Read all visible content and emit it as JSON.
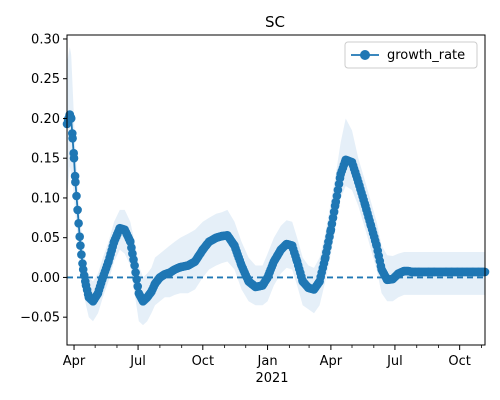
{
  "chart_data": {
    "type": "line",
    "title": "SC",
    "xlabel": "",
    "ylabel": "",
    "x_tick_labels": [
      "Apr",
      "Jul",
      "Oct",
      "Jan",
      "Apr",
      "Jul",
      "Oct"
    ],
    "x_year_label": "2021",
    "y_tick_labels": [
      "0.30",
      "0.25",
      "0.20",
      "0.15",
      "0.10",
      "0.05",
      "0.00",
      "−0.05"
    ],
    "ylim": [
      -0.085,
      0.305
    ],
    "xlim": [
      "2020-03-22",
      "2021-11-06"
    ],
    "legend": {
      "entries": [
        "growth_rate"
      ],
      "position": "top-right"
    },
    "reference_line": {
      "y": 0.0,
      "style": "dashed"
    },
    "colors": {
      "line": "#1f77b4",
      "band": "#c6dbef"
    },
    "series": [
      {
        "name": "growth_rate",
        "x": [
          "2020-03-22",
          "2020-03-24",
          "2020-03-26",
          "2020-03-28",
          "2020-03-30",
          "2020-04-01",
          "2020-04-03",
          "2020-04-06",
          "2020-04-10",
          "2020-04-14",
          "2020-04-18",
          "2020-04-22",
          "2020-04-28",
          "2020-05-05",
          "2020-05-12",
          "2020-05-20",
          "2020-05-28",
          "2020-06-05",
          "2020-06-12",
          "2020-06-20",
          "2020-06-26",
          "2020-07-02",
          "2020-07-08",
          "2020-07-14",
          "2020-07-20",
          "2020-07-25",
          "2020-08-01",
          "2020-08-08",
          "2020-08-15",
          "2020-08-22",
          "2020-08-30",
          "2020-09-10",
          "2020-09-20",
          "2020-10-01",
          "2020-10-10",
          "2020-10-20",
          "2020-10-28",
          "2020-11-05",
          "2020-11-15",
          "2020-11-25",
          "2020-12-05",
          "2020-12-15",
          "2020-12-25",
          "2021-01-01",
          "2021-01-10",
          "2021-01-20",
          "2021-01-28",
          "2021-02-05",
          "2021-02-12",
          "2021-02-20",
          "2021-02-28",
          "2021-03-08",
          "2021-03-16",
          "2021-03-24",
          "2021-04-01",
          "2021-04-08",
          "2021-04-15",
          "2021-04-22",
          "2021-05-01",
          "2021-05-10",
          "2021-05-20",
          "2021-05-28",
          "2021-06-05",
          "2021-06-12",
          "2021-06-20",
          "2021-06-28",
          "2021-07-06",
          "2021-07-14",
          "2021-07-20",
          "2021-07-25",
          "2021-07-30",
          "2021-08-04",
          "2021-08-10",
          "2021-08-18",
          "2021-08-26",
          "2021-09-04",
          "2021-09-12",
          "2021-09-20",
          "2021-09-28",
          "2021-10-05",
          "2021-10-12",
          "2021-10-20",
          "2021-10-28",
          "2021-11-06"
        ],
        "values": [
          0.193,
          0.2,
          0.205,
          0.2,
          0.175,
          0.15,
          0.12,
          0.085,
          0.04,
          0.01,
          -0.01,
          -0.025,
          -0.03,
          -0.02,
          0.0,
          0.02,
          0.045,
          0.062,
          0.06,
          0.045,
          0.015,
          -0.02,
          -0.03,
          -0.025,
          -0.018,
          -0.008,
          0.0,
          0.004,
          0.006,
          0.01,
          0.013,
          0.015,
          0.02,
          0.035,
          0.045,
          0.05,
          0.052,
          0.053,
          0.04,
          0.015,
          -0.005,
          -0.012,
          -0.01,
          0.0,
          0.02,
          0.035,
          0.042,
          0.04,
          0.02,
          -0.005,
          -0.013,
          -0.015,
          -0.005,
          0.025,
          0.06,
          0.095,
          0.13,
          0.148,
          0.145,
          0.12,
          0.09,
          0.065,
          0.04,
          0.01,
          -0.003,
          -0.002,
          0.005,
          0.008,
          0.008,
          0.007,
          0.007,
          0.007,
          0.007,
          0.007,
          0.007,
          0.007,
          0.007,
          0.007,
          0.007,
          0.007,
          0.007,
          0.007,
          0.007,
          0.007
        ],
        "lower": [
          0.1,
          0.12,
          0.14,
          0.13,
          0.12,
          0.1,
          0.08,
          0.05,
          0.01,
          -0.015,
          -0.035,
          -0.05,
          -0.055,
          -0.045,
          -0.025,
          -0.005,
          0.02,
          0.035,
          0.03,
          0.015,
          -0.02,
          -0.055,
          -0.06,
          -0.055,
          -0.045,
          -0.035,
          -0.03,
          -0.025,
          -0.025,
          -0.022,
          -0.02,
          -0.02,
          -0.015,
          0.0,
          0.01,
          0.015,
          0.018,
          0.02,
          0.01,
          -0.015,
          -0.03,
          -0.035,
          -0.035,
          -0.03,
          -0.01,
          0.005,
          0.012,
          0.01,
          -0.01,
          -0.035,
          -0.04,
          -0.045,
          -0.035,
          -0.005,
          0.03,
          0.065,
          0.1,
          0.115,
          0.11,
          0.09,
          0.06,
          0.035,
          0.01,
          -0.02,
          -0.03,
          -0.03,
          -0.025,
          -0.022,
          -0.022,
          -0.022,
          -0.022,
          -0.022,
          -0.022,
          -0.022,
          -0.022,
          -0.022,
          -0.022,
          -0.022,
          -0.022,
          -0.022,
          -0.022,
          -0.022,
          -0.022,
          -0.022
        ],
        "upper": [
          0.27,
          0.28,
          0.29,
          0.28,
          0.24,
          0.2,
          0.16,
          0.12,
          0.07,
          0.04,
          0.015,
          0.0,
          -0.005,
          0.005,
          0.025,
          0.045,
          0.07,
          0.085,
          0.085,
          0.07,
          0.045,
          0.015,
          0.0,
          0.005,
          0.012,
          0.025,
          0.03,
          0.035,
          0.04,
          0.045,
          0.05,
          0.055,
          0.06,
          0.07,
          0.075,
          0.08,
          0.082,
          0.085,
          0.07,
          0.045,
          0.025,
          0.015,
          0.015,
          0.03,
          0.05,
          0.065,
          0.072,
          0.07,
          0.05,
          0.025,
          0.015,
          0.012,
          0.025,
          0.055,
          0.095,
          0.13,
          0.17,
          0.2,
          0.185,
          0.15,
          0.12,
          0.095,
          0.07,
          0.04,
          0.028,
          0.027,
          0.03,
          0.032,
          0.032,
          0.032,
          0.032,
          0.032,
          0.032,
          0.032,
          0.032,
          0.032,
          0.032,
          0.032,
          0.032,
          0.032,
          0.032,
          0.032,
          0.032,
          0.032
        ]
      }
    ]
  }
}
